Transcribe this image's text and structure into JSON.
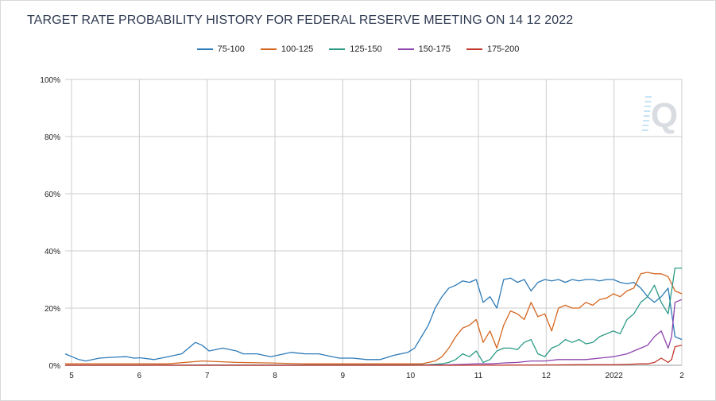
{
  "chart_data": {
    "type": "line",
    "title": "TARGET RATE PROBABILITY HISTORY FOR FEDERAL RESERVE MEETING ON 14 12 2022",
    "xlabel": "",
    "ylabel": "",
    "x_tick_labels": [
      "5",
      "6",
      "7",
      "8",
      "9",
      "10",
      "11",
      "12",
      "2022",
      "2"
    ],
    "y_tick_labels": [
      "0%",
      "20%",
      "40%",
      "60%",
      "80%",
      "100%"
    ],
    "ylim": [
      0,
      100
    ],
    "grid": true,
    "legend_position": "top-center",
    "series": [
      {
        "name": "75-100",
        "color": "#2e7bb8",
        "x": [
          0.0,
          0.1,
          0.2,
          0.3,
          0.5,
          0.7,
          0.9,
          1.0,
          1.1,
          1.3,
          1.5,
          1.7,
          1.9,
          2.0,
          2.1,
          2.3,
          2.5,
          2.6,
          2.8,
          3.0,
          3.1,
          3.3,
          3.5,
          3.7,
          3.9,
          4.0,
          4.2,
          4.4,
          4.6,
          4.8,
          5.0,
          5.1,
          5.2,
          5.3,
          5.4,
          5.5,
          5.6,
          5.7,
          5.8,
          5.9,
          6.0,
          6.1,
          6.2,
          6.3,
          6.4,
          6.5,
          6.6,
          6.7,
          6.8,
          6.9,
          7.0,
          7.1,
          7.2,
          7.3,
          7.4,
          7.5,
          7.6,
          7.7,
          7.8,
          7.9,
          8.0,
          8.1,
          8.2,
          8.3,
          8.4,
          8.5,
          8.6,
          8.7,
          8.8,
          8.9,
          9.0
        ],
        "y": [
          4.0,
          3.0,
          2.0,
          1.5,
          2.5,
          2.8,
          3.0,
          2.5,
          2.6,
          2.0,
          3.0,
          4.0,
          8.0,
          7.0,
          5.0,
          6.0,
          5.0,
          4.0,
          4.0,
          3.0,
          3.5,
          4.5,
          4.0,
          4.0,
          3.0,
          2.5,
          2.5,
          2.0,
          2.0,
          3.5,
          4.5,
          6.0,
          10.0,
          14.0,
          20.0,
          24.0,
          27.0,
          28.0,
          29.5,
          29.0,
          30.0,
          22.0,
          24.0,
          20.0,
          30.0,
          30.5,
          29.0,
          30.0,
          26.0,
          29.0,
          30.0,
          29.5,
          30.0,
          29.0,
          30.0,
          29.5,
          30.0,
          30.0,
          29.5,
          30.0,
          30.0,
          29.0,
          28.5,
          29.0,
          27.0,
          24.0,
          22.0,
          24.0,
          27.0,
          10.0,
          9.0
        ]
      },
      {
        "name": "100-125",
        "color": "#d4661f",
        "x": [
          0.0,
          0.5,
          1.0,
          1.5,
          2.0,
          2.5,
          3.0,
          3.5,
          4.0,
          4.5,
          5.0,
          5.2,
          5.4,
          5.5,
          5.6,
          5.7,
          5.8,
          5.9,
          6.0,
          6.1,
          6.2,
          6.3,
          6.4,
          6.5,
          6.6,
          6.7,
          6.8,
          6.9,
          7.0,
          7.1,
          7.2,
          7.3,
          7.4,
          7.5,
          7.6,
          7.7,
          7.8,
          7.9,
          8.0,
          8.1,
          8.2,
          8.3,
          8.4,
          8.5,
          8.6,
          8.7,
          8.8,
          8.9,
          9.0
        ],
        "y": [
          0.5,
          0.5,
          0.5,
          0.5,
          1.5,
          1.0,
          0.8,
          0.5,
          0.5,
          0.5,
          0.5,
          0.5,
          1.5,
          3.0,
          6.0,
          10.0,
          13.0,
          14.0,
          16.0,
          8.0,
          12.0,
          6.0,
          14.0,
          19.0,
          18.0,
          16.0,
          22.0,
          17.0,
          18.0,
          12.0,
          20.0,
          21.0,
          20.0,
          20.0,
          22.0,
          21.0,
          23.0,
          23.5,
          25.0,
          24.0,
          26.0,
          27.0,
          32.0,
          32.5,
          32.0,
          32.0,
          31.0,
          26.0,
          25.0
        ]
      },
      {
        "name": "125-150",
        "color": "#2a9a86",
        "x": [
          0.0,
          1.0,
          2.0,
          3.0,
          4.0,
          5.0,
          5.3,
          5.5,
          5.6,
          5.7,
          5.8,
          5.9,
          6.0,
          6.1,
          6.2,
          6.3,
          6.4,
          6.5,
          6.6,
          6.7,
          6.8,
          6.9,
          7.0,
          7.1,
          7.2,
          7.3,
          7.4,
          7.5,
          7.6,
          7.7,
          7.8,
          7.9,
          8.0,
          8.1,
          8.2,
          8.3,
          8.4,
          8.5,
          8.6,
          8.7,
          8.8,
          8.9,
          9.0
        ],
        "y": [
          0.0,
          0.0,
          0.1,
          0.1,
          0.1,
          0.1,
          0.2,
          0.5,
          1.0,
          2.0,
          4.0,
          3.0,
          5.0,
          1.0,
          2.0,
          5.0,
          6.0,
          6.0,
          5.5,
          8.0,
          9.0,
          4.0,
          3.0,
          6.0,
          7.0,
          9.0,
          8.0,
          9.0,
          7.5,
          8.0,
          10.0,
          11.0,
          12.0,
          11.0,
          16.0,
          18.0,
          22.0,
          24.0,
          28.0,
          22.0,
          18.0,
          34.0,
          34.0
        ]
      },
      {
        "name": "150-175",
        "color": "#8e44ad",
        "x": [
          0.0,
          2.0,
          4.0,
          5.0,
          5.5,
          5.8,
          6.0,
          6.2,
          6.4,
          6.6,
          6.8,
          7.0,
          7.2,
          7.4,
          7.6,
          7.8,
          8.0,
          8.2,
          8.4,
          8.5,
          8.6,
          8.7,
          8.8,
          8.85,
          8.9,
          9.0
        ],
        "y": [
          0.0,
          0.0,
          0.0,
          0.0,
          0.1,
          0.3,
          0.5,
          0.5,
          0.8,
          1.0,
          1.5,
          1.5,
          2.0,
          2.0,
          2.0,
          2.5,
          3.0,
          4.0,
          6.0,
          7.0,
          10.0,
          12.0,
          6.0,
          10.0,
          22.0,
          23.0
        ]
      },
      {
        "name": "175-200",
        "color": "#c0392b",
        "x": [
          0.0,
          2.0,
          4.0,
          6.0,
          7.0,
          7.5,
          8.0,
          8.2,
          8.4,
          8.5,
          8.6,
          8.7,
          8.8,
          8.85,
          8.9,
          9.0
        ],
        "y": [
          0.0,
          0.0,
          0.0,
          0.0,
          0.1,
          0.2,
          0.2,
          0.3,
          0.5,
          0.5,
          1.0,
          2.5,
          1.0,
          2.0,
          6.5,
          7.0
        ]
      }
    ]
  }
}
